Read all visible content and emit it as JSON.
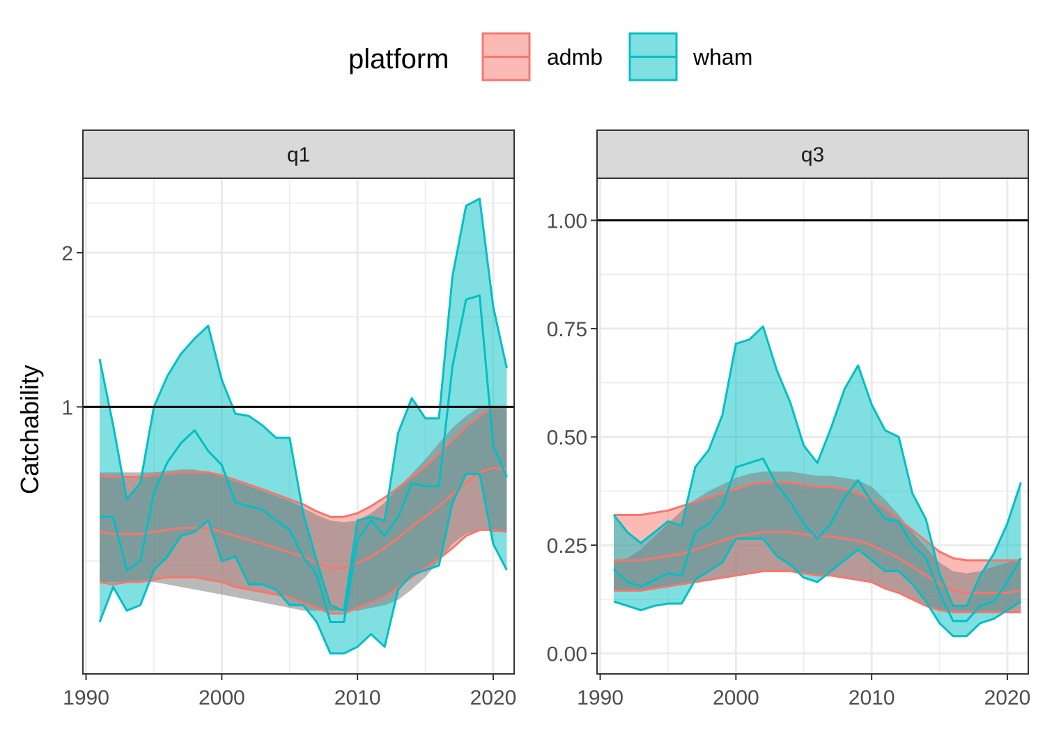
{
  "legend": {
    "title": "platform",
    "items": [
      {
        "label": "admb",
        "color": "#F8766D"
      },
      {
        "label": "wham",
        "color": "#00BFC4"
      }
    ]
  },
  "ylabel": "Catchability",
  "chart_data": [
    {
      "type": "area",
      "panel": "q1",
      "xlabel": "",
      "ylabel": "Catchability",
      "xlim": [
        1990,
        2021
      ],
      "ylim": [
        0.33,
        2.55
      ],
      "y_scale": "log",
      "xticks": [
        1990,
        2000,
        2010,
        2020
      ],
      "yticks": [
        1,
        2
      ],
      "reference_line": 1.0,
      "grid": true,
      "series": [
        {
          "name": "admb",
          "x": [
            1991,
            1992,
            1993,
            1994,
            1995,
            1996,
            1997,
            1998,
            1999,
            2000,
            2001,
            2002,
            2003,
            2004,
            2005,
            2006,
            2007,
            2008,
            2009,
            2010,
            2011,
            2012,
            2013,
            2014,
            2015,
            2016,
            2017,
            2018,
            2019,
            2020,
            2021
          ],
          "mean": [
            0.57,
            0.565,
            0.565,
            0.565,
            0.57,
            0.575,
            0.58,
            0.58,
            0.58,
            0.57,
            0.56,
            0.55,
            0.54,
            0.53,
            0.52,
            0.51,
            0.495,
            0.485,
            0.485,
            0.495,
            0.51,
            0.53,
            0.555,
            0.585,
            0.61,
            0.64,
            0.675,
            0.71,
            0.745,
            0.76,
            0.755
          ],
          "lower": [
            0.455,
            0.45,
            0.455,
            0.455,
            0.46,
            0.465,
            0.465,
            0.465,
            0.46,
            0.455,
            0.445,
            0.44,
            0.435,
            0.43,
            0.425,
            0.415,
            0.405,
            0.395,
            0.395,
            0.405,
            0.415,
            0.425,
            0.445,
            0.465,
            0.485,
            0.505,
            0.53,
            0.56,
            0.575,
            0.575,
            0.57
          ],
          "upper": [
            0.735,
            0.73,
            0.73,
            0.73,
            0.735,
            0.74,
            0.745,
            0.745,
            0.745,
            0.735,
            0.72,
            0.705,
            0.69,
            0.675,
            0.66,
            0.645,
            0.625,
            0.61,
            0.61,
            0.62,
            0.64,
            0.665,
            0.695,
            0.73,
            0.765,
            0.81,
            0.86,
            0.915,
            0.96,
            1.0,
            1.0
          ]
        },
        {
          "name": "wham",
          "x": [
            1991,
            1992,
            1993,
            1994,
            1995,
            1996,
            1997,
            1998,
            1999,
            2000,
            2001,
            2002,
            2003,
            2004,
            2005,
            2006,
            2007,
            2008,
            2009,
            2010,
            2011,
            2012,
            2013,
            2014,
            2015,
            2016,
            2017,
            2018,
            2019,
            2020,
            2021
          ],
          "mean": [
            0.61,
            0.61,
            0.48,
            0.5,
            0.68,
            0.78,
            0.85,
            0.9,
            0.82,
            0.77,
            0.65,
            0.64,
            0.63,
            0.6,
            0.575,
            0.51,
            0.47,
            0.38,
            0.38,
            0.55,
            0.6,
            0.56,
            0.61,
            0.71,
            0.7,
            0.7,
            1.2,
            1.62,
            1.65,
            0.84,
            0.73
          ],
          "lower": [
            0.38,
            0.445,
            0.4,
            0.41,
            0.48,
            0.51,
            0.56,
            0.57,
            0.6,
            0.5,
            0.51,
            0.45,
            0.45,
            0.44,
            0.41,
            0.41,
            0.38,
            0.33,
            0.33,
            0.34,
            0.36,
            0.34,
            0.44,
            0.47,
            0.48,
            0.49,
            0.65,
            0.74,
            0.74,
            0.54,
            0.48
          ],
          "upper": [
            1.24,
            0.92,
            0.66,
            0.71,
            1.0,
            1.15,
            1.27,
            1.36,
            1.44,
            1.13,
            0.97,
            0.96,
            0.92,
            0.87,
            0.87,
            0.62,
            0.5,
            0.41,
            0.4,
            0.6,
            0.61,
            0.6,
            0.89,
            1.04,
            0.95,
            0.95,
            1.8,
            2.47,
            2.55,
            1.57,
            1.19
          ]
        },
        {
          "name": "",
          "x": [
            1991,
            1992,
            1993,
            1994,
            1995,
            1996,
            1997,
            1998,
            1999,
            2000,
            2001,
            2002,
            2003,
            2004,
            2005,
            2006,
            2007,
            2008,
            2009,
            2010,
            2011,
            2012,
            2013,
            2014,
            2015,
            2016,
            2017,
            2018,
            2019,
            2020,
            2021
          ],
          "lower": [
            0.455,
            0.455,
            0.455,
            0.455,
            0.455,
            0.45,
            0.445,
            0.44,
            0.435,
            0.43,
            0.425,
            0.42,
            0.415,
            0.41,
            0.405,
            0.4,
            0.4,
            0.4,
            0.4,
            0.4,
            0.405,
            0.41,
            0.42,
            0.44,
            0.465,
            0.5,
            0.54,
            0.565,
            0.575,
            0.57,
            0.57
          ],
          "upper": [
            0.745,
            0.745,
            0.745,
            0.745,
            0.745,
            0.75,
            0.755,
            0.755,
            0.745,
            0.73,
            0.715,
            0.7,
            0.685,
            0.67,
            0.655,
            0.635,
            0.615,
            0.6,
            0.595,
            0.6,
            0.62,
            0.65,
            0.695,
            0.74,
            0.79,
            0.85,
            0.91,
            0.96,
            1.0,
            1.0,
            1.0
          ]
        }
      ]
    },
    {
      "type": "area",
      "panel": "q3",
      "xlabel": "",
      "ylabel": "",
      "xlim": [
        1990,
        2021
      ],
      "ylim": [
        0,
        1.05
      ],
      "xticks": [
        1990,
        2000,
        2010,
        2020
      ],
      "yticks": [
        0.0,
        0.25,
        0.5,
        0.75,
        1.0
      ],
      "ytick_labels": [
        "0.00",
        "0.25",
        "0.50",
        "0.75",
        "1.00"
      ],
      "reference_line": 1.0,
      "grid": true,
      "series": [
        {
          "name": "admb",
          "x": [
            1991,
            1992,
            1993,
            1994,
            1995,
            1996,
            1997,
            1998,
            1999,
            2000,
            2001,
            2002,
            2003,
            2004,
            2005,
            2006,
            2007,
            2008,
            2009,
            2010,
            2011,
            2012,
            2013,
            2014,
            2015,
            2016,
            2017,
            2018,
            2019,
            2020,
            2021
          ],
          "mean": [
            0.215,
            0.215,
            0.215,
            0.22,
            0.225,
            0.23,
            0.24,
            0.25,
            0.26,
            0.27,
            0.275,
            0.28,
            0.28,
            0.28,
            0.275,
            0.27,
            0.27,
            0.265,
            0.26,
            0.25,
            0.235,
            0.22,
            0.2,
            0.18,
            0.16,
            0.145,
            0.14,
            0.14,
            0.14,
            0.14,
            0.145
          ],
          "lower": [
            0.145,
            0.145,
            0.145,
            0.15,
            0.155,
            0.16,
            0.165,
            0.17,
            0.175,
            0.18,
            0.185,
            0.19,
            0.19,
            0.19,
            0.185,
            0.18,
            0.18,
            0.175,
            0.17,
            0.165,
            0.15,
            0.14,
            0.125,
            0.11,
            0.1,
            0.095,
            0.095,
            0.095,
            0.095,
            0.095,
            0.095
          ],
          "upper": [
            0.32,
            0.32,
            0.32,
            0.325,
            0.33,
            0.34,
            0.35,
            0.36,
            0.37,
            0.38,
            0.39,
            0.395,
            0.395,
            0.395,
            0.39,
            0.385,
            0.385,
            0.38,
            0.37,
            0.355,
            0.335,
            0.31,
            0.285,
            0.26,
            0.235,
            0.22,
            0.215,
            0.215,
            0.215,
            0.215,
            0.215
          ]
        },
        {
          "name": "wham",
          "x": [
            1991,
            1992,
            1993,
            1994,
            1995,
            1996,
            1997,
            1998,
            1999,
            2000,
            2001,
            2002,
            2003,
            2004,
            2005,
            2006,
            2007,
            2008,
            2009,
            2010,
            2011,
            2012,
            2013,
            2014,
            2015,
            2016,
            2017,
            2018,
            2019,
            2020,
            2021
          ],
          "mean": [
            0.195,
            0.165,
            0.155,
            0.17,
            0.185,
            0.18,
            0.28,
            0.3,
            0.34,
            0.43,
            0.44,
            0.45,
            0.39,
            0.35,
            0.3,
            0.265,
            0.3,
            0.36,
            0.4,
            0.35,
            0.31,
            0.305,
            0.25,
            0.22,
            0.14,
            0.075,
            0.075,
            0.11,
            0.12,
            0.165,
            0.22
          ],
          "lower": [
            0.12,
            0.11,
            0.1,
            0.11,
            0.115,
            0.115,
            0.17,
            0.19,
            0.21,
            0.265,
            0.265,
            0.265,
            0.225,
            0.205,
            0.175,
            0.165,
            0.19,
            0.215,
            0.24,
            0.215,
            0.19,
            0.19,
            0.16,
            0.12,
            0.07,
            0.04,
            0.04,
            0.07,
            0.08,
            0.1,
            0.12
          ],
          "upper": [
            0.32,
            0.28,
            0.255,
            0.28,
            0.305,
            0.295,
            0.43,
            0.47,
            0.55,
            0.715,
            0.725,
            0.755,
            0.655,
            0.58,
            0.48,
            0.44,
            0.52,
            0.61,
            0.665,
            0.575,
            0.515,
            0.5,
            0.37,
            0.31,
            0.185,
            0.11,
            0.11,
            0.18,
            0.23,
            0.3,
            0.395
          ]
        },
        {
          "name": "",
          "x": [
            1991,
            1992,
            1993,
            1994,
            1995,
            1996,
            1997,
            1998,
            1999,
            2000,
            2001,
            2002,
            2003,
            2004,
            2005,
            2006,
            2007,
            2008,
            2009,
            2010,
            2011,
            2012,
            2013,
            2014,
            2015,
            2016,
            2017,
            2018,
            2019,
            2020,
            2021
          ],
          "lower": [
            0.145,
            0.145,
            0.145,
            0.15,
            0.155,
            0.16,
            0.165,
            0.17,
            0.175,
            0.18,
            0.185,
            0.19,
            0.19,
            0.19,
            0.185,
            0.18,
            0.18,
            0.175,
            0.17,
            0.165,
            0.15,
            0.14,
            0.125,
            0.11,
            0.1,
            0.095,
            0.095,
            0.095,
            0.095,
            0.095,
            0.095
          ],
          "upper": [
            0.215,
            0.22,
            0.24,
            0.27,
            0.3,
            0.33,
            0.355,
            0.375,
            0.39,
            0.405,
            0.415,
            0.42,
            0.42,
            0.42,
            0.415,
            0.41,
            0.41,
            0.405,
            0.4,
            0.385,
            0.355,
            0.32,
            0.28,
            0.245,
            0.21,
            0.19,
            0.185,
            0.19,
            0.2,
            0.21,
            0.22
          ]
        }
      ]
    }
  ],
  "colors": {
    "admb_fill": "#F8766D",
    "wham_fill": "#00BFC4",
    "overlap_fill": "#808080",
    "refline": "#000000",
    "strip_bg": "#D9D9D9",
    "grid": "#EBEBEB"
  }
}
